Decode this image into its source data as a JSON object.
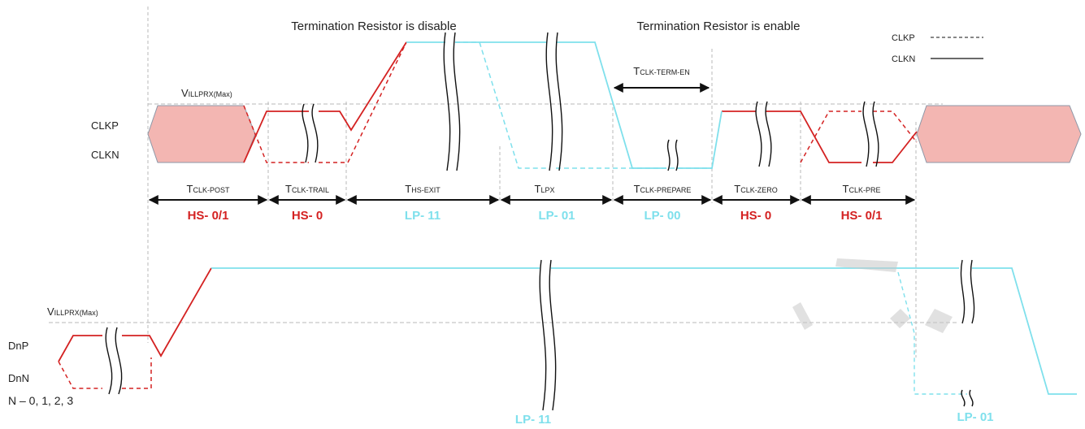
{
  "colors": {
    "hs": "#d42222",
    "lp": "#7fe0ec",
    "hs_fill": "#f3b6b2",
    "guide": "#b8b8b8",
    "ink": "#222222"
  },
  "headers": {
    "term_disable": "Termination Resistor is disable",
    "term_enable": "Termination Resistor is enable"
  },
  "legend": {
    "clkp": "CLKP",
    "clkn": "CLKN"
  },
  "clock_lane": {
    "threshold": {
      "main": "V",
      "sub": "ILLPRX(Max)"
    },
    "p_label": "CLKP",
    "n_label": "CLKN",
    "term_en": {
      "main": "T",
      "sub": "CLK-TERM-EN"
    }
  },
  "segments": [
    {
      "main": "T",
      "sub": "CLK-POST",
      "state": "HS- 0/1",
      "color": "hs"
    },
    {
      "main": "T",
      "sub": "CLK-TRAIL",
      "state": "HS- 0",
      "color": "hs"
    },
    {
      "main": "T",
      "sub": "HS-EXIT",
      "state": "LP- 11",
      "color": "lp"
    },
    {
      "main": "T",
      "sub": "LPX",
      "state": "LP- 01",
      "color": "lp"
    },
    {
      "main": "T",
      "sub": "CLK-PREPARE",
      "state": "LP- 00",
      "color": "lp"
    },
    {
      "main": "T",
      "sub": "CLK-ZERO",
      "state": "HS- 0",
      "color": "hs"
    },
    {
      "main": "T",
      "sub": "CLK-PRE",
      "state": "HS- 0/1",
      "color": "hs"
    }
  ],
  "data_lane": {
    "threshold": {
      "main": "V",
      "sub": "ILLPRX(Max)"
    },
    "p_label": "DnP",
    "n_label": "DnN",
    "lanes": "N – 0, 1, 2, 3",
    "state_mid": "LP- 11",
    "state_end": "LP- 01"
  }
}
